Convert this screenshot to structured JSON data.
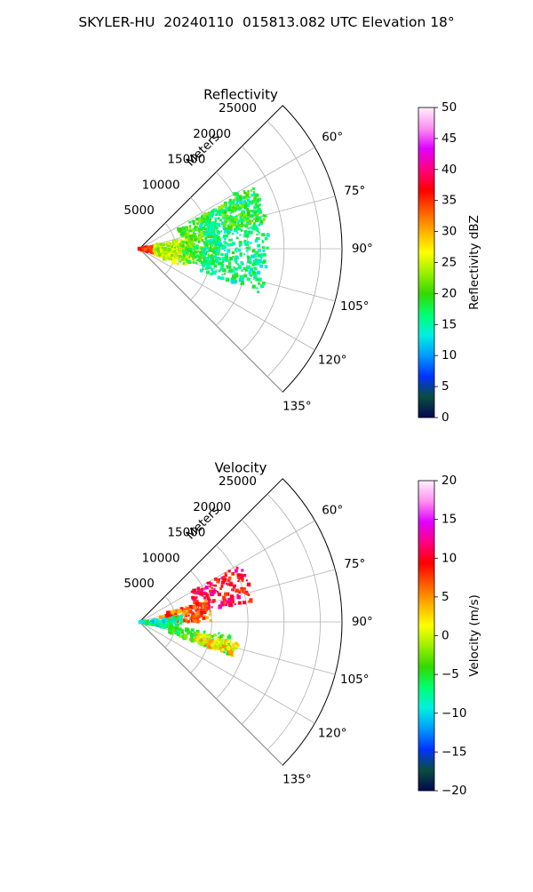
{
  "figure": {
    "title": "SKYLER-HU  20240110  015813.082 UTC Elevation 18°"
  },
  "chart_data": [
    {
      "type": "heatmap",
      "subtype": "polar-sector (radar PPI)",
      "title": "Reflectivity",
      "radial_label": "Meters",
      "radial_ticks": [
        "5000",
        "10000",
        "15000",
        "20000",
        "25000"
      ],
      "radial_tick_values": [
        5000,
        10000,
        15000,
        20000,
        25000
      ],
      "radial_range": [
        0,
        28000
      ],
      "angle_ticks": [
        "60°",
        "75°",
        "90°",
        "105°",
        "120°",
        "135°"
      ],
      "angle_tick_values": [
        60,
        75,
        90,
        105,
        120,
        135
      ],
      "angle_range": [
        45,
        135
      ],
      "grid": true,
      "colorbar": {
        "label": "Reflectivity dBZ",
        "ticks": [
          "0",
          "5",
          "10",
          "15",
          "20",
          "25",
          "30",
          "35",
          "40",
          "45",
          "50"
        ],
        "range": [
          0,
          50
        ],
        "stops": [
          "#03084f",
          "#0a4d3f",
          "#0033ff",
          "#009cff",
          "#00f0e0",
          "#00ff70",
          "#34d800",
          "#9cf000",
          "#ffff00",
          "#ffb000",
          "#ff5a00",
          "#ff0000",
          "#ff0080",
          "#e000ff",
          "#ff8ff0",
          "#fff0ff"
        ]
      },
      "echo_regions": [
        {
          "range_min": 0,
          "range_max": 3000,
          "az_min": 78,
          "az_max": 110,
          "value": 36
        },
        {
          "range_min": 2000,
          "range_max": 7000,
          "az_min": 76,
          "az_max": 112,
          "value": 25
        },
        {
          "range_min": 6000,
          "range_max": 11000,
          "az_min": 62,
          "az_max": 105,
          "value": 20
        },
        {
          "range_min": 9000,
          "range_max": 18000,
          "az_min": 62,
          "az_max": 110,
          "value": 16
        },
        {
          "range_min": 12000,
          "range_max": 18000,
          "az_min": 60,
          "az_max": 78,
          "value": 20
        }
      ]
    },
    {
      "type": "heatmap",
      "subtype": "polar-sector (radar PPI)",
      "title": "Velocity",
      "radial_label": "Meters",
      "radial_ticks": [
        "5000",
        "10000",
        "15000",
        "20000",
        "25000"
      ],
      "radial_tick_values": [
        5000,
        10000,
        15000,
        20000,
        25000
      ],
      "radial_range": [
        0,
        28000
      ],
      "angle_ticks": [
        "60°",
        "75°",
        "90°",
        "105°",
        "120°",
        "135°"
      ],
      "angle_tick_values": [
        60,
        75,
        90,
        105,
        120,
        135
      ],
      "angle_range": [
        45,
        135
      ],
      "grid": true,
      "colorbar": {
        "label": "Velocity (m/s)",
        "ticks": [
          "−20",
          "−15",
          "−10",
          "−5",
          "0",
          "5",
          "10",
          "15",
          "20"
        ],
        "range": [
          -20,
          20
        ],
        "stops": [
          "#03084f",
          "#0a4d3f",
          "#0033ff",
          "#009cff",
          "#00f0e0",
          "#00ff70",
          "#34d800",
          "#9cf000",
          "#ffff00",
          "#ffb000",
          "#ff5a00",
          "#ff0000",
          "#ff0080",
          "#e000ff",
          "#ff8ff0",
          "#fff0ff"
        ]
      },
      "echo_regions": [
        {
          "range_min": 8000,
          "range_max": 16000,
          "az_min": 60,
          "az_max": 80,
          "value": 10
        },
        {
          "range_min": 3000,
          "range_max": 10000,
          "az_min": 72,
          "az_max": 90,
          "value": 7
        },
        {
          "range_min": 0,
          "range_max": 6000,
          "az_min": 82,
          "az_max": 104,
          "value": -8
        },
        {
          "range_min": 4000,
          "range_max": 13000,
          "az_min": 98,
          "az_max": 110,
          "value": -4
        },
        {
          "range_min": 8000,
          "range_max": 14000,
          "az_min": 102,
          "az_max": 110,
          "value": 2
        }
      ]
    }
  ]
}
